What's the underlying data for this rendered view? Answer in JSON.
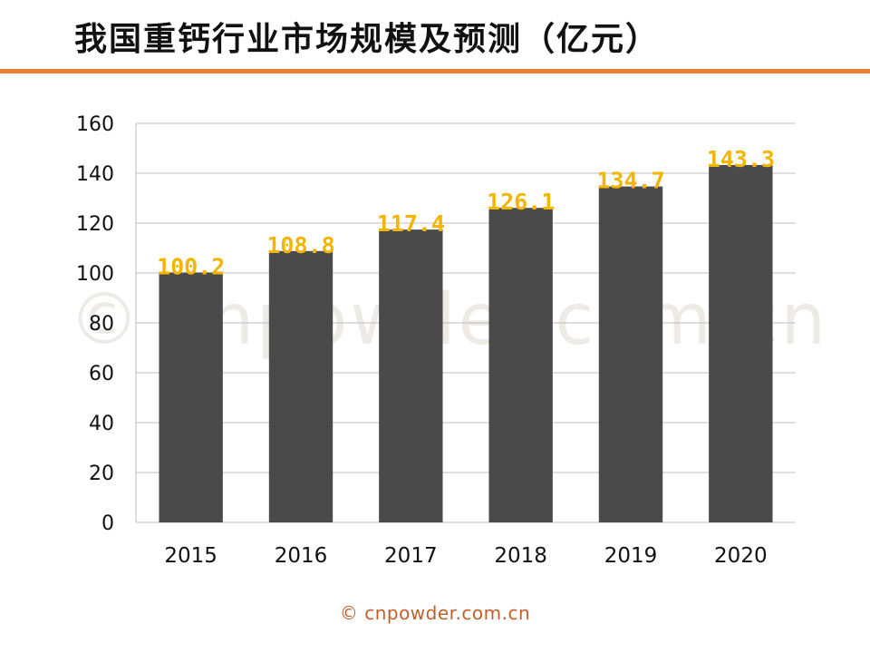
{
  "title": "我国重钙行业市场规模及预测（亿元）",
  "watermark": "© cnpowder.com.cn",
  "footer": "© cnpowder.com.cn",
  "colors": {
    "accent": "#ED7D31",
    "bar": "#4A4A4A",
    "data_label": "#F5B400",
    "grid": "#BFBFBF",
    "text": "#111111"
  },
  "chart_data": {
    "type": "bar",
    "categories": [
      "2015",
      "2016",
      "2017",
      "2018",
      "2019",
      "2020"
    ],
    "values": [
      100.2,
      108.8,
      117.4,
      126.1,
      134.7,
      143.3
    ],
    "data_labels": [
      "100.2",
      "108.8",
      "117.4",
      "126.1",
      "134.7",
      "143.3"
    ],
    "xlabel": "",
    "ylabel": "",
    "ylim": [
      0,
      160
    ],
    "yticks": [
      0,
      20,
      40,
      60,
      80,
      100,
      120,
      140,
      160
    ],
    "grid": true,
    "legend": "none"
  }
}
